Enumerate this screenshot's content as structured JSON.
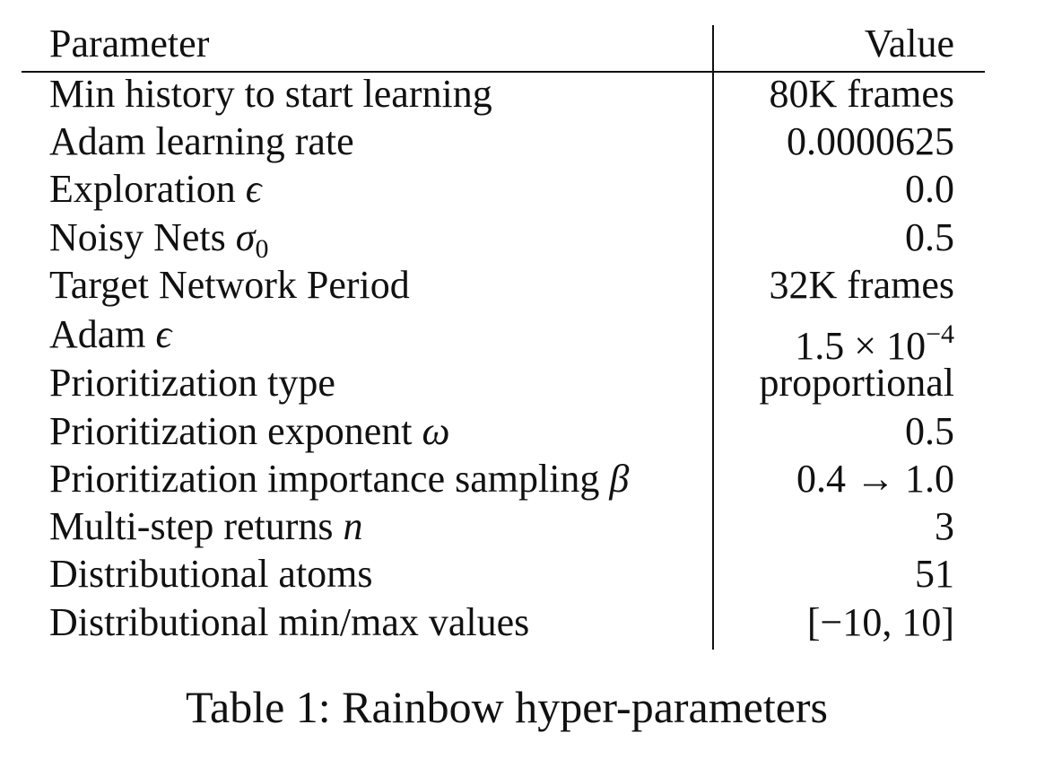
{
  "table": {
    "header": {
      "param": "Parameter",
      "value": "Value"
    },
    "rows": [
      {
        "param": "Min history to start learning",
        "value": "80K frames"
      },
      {
        "param": "Adam learning rate",
        "value": "0.0000625"
      },
      {
        "param": "Exploration",
        "param_symbol": "ϵ",
        "value": "0.0"
      },
      {
        "param": "Noisy Nets",
        "param_symbol": "σ",
        "param_subscript": "0",
        "value": "0.5"
      },
      {
        "param": "Target Network Period",
        "value": "32K frames"
      },
      {
        "param": "Adam",
        "param_symbol": "ϵ",
        "value": "1.5 × 10",
        "value_superscript": "−4"
      },
      {
        "param": "Prioritization type",
        "value": "proportional"
      },
      {
        "param": "Prioritization exponent",
        "param_symbol": "ω",
        "value": "0.5"
      },
      {
        "param": "Prioritization importance sampling",
        "param_symbol": "β",
        "value": "0.4 → 1.0"
      },
      {
        "param": "Multi-step returns",
        "param_symbol": "n",
        "value": "3"
      },
      {
        "param": "Distributional atoms",
        "value": "51"
      },
      {
        "param": "Distributional min/max values",
        "value": "[−10, 10]"
      }
    ]
  },
  "caption": "Table 1: Rainbow hyper-parameters"
}
